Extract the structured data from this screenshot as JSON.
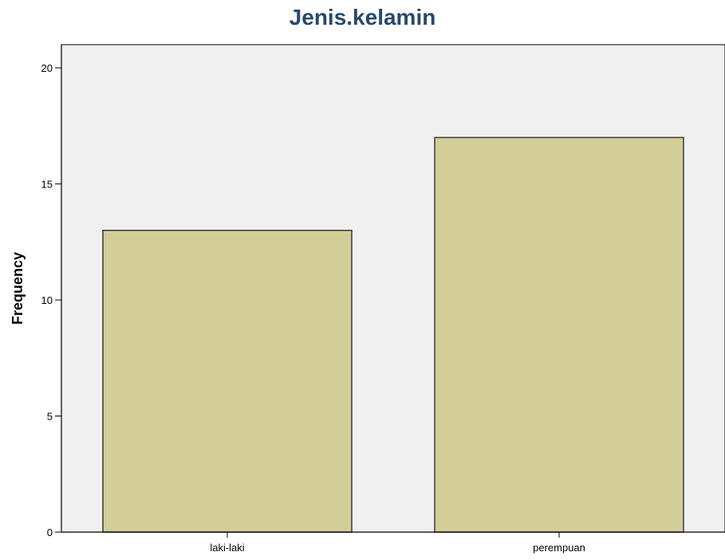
{
  "chart_data": {
    "type": "bar",
    "title": "Jenis.kelamin",
    "xlabel": "",
    "ylabel": "Frequency",
    "categories": [
      "laki-laki",
      "perempuan"
    ],
    "values": [
      13,
      17
    ],
    "ylim": [
      0,
      21
    ],
    "yticks": [
      0,
      5,
      10,
      15,
      20
    ],
    "grid": false,
    "legend": "none",
    "colors": {
      "bar_fill": "#d3cd98",
      "bar_stroke": "#3a3a3a",
      "plot_background": "#f0f0f0",
      "title": "#274a69"
    }
  }
}
